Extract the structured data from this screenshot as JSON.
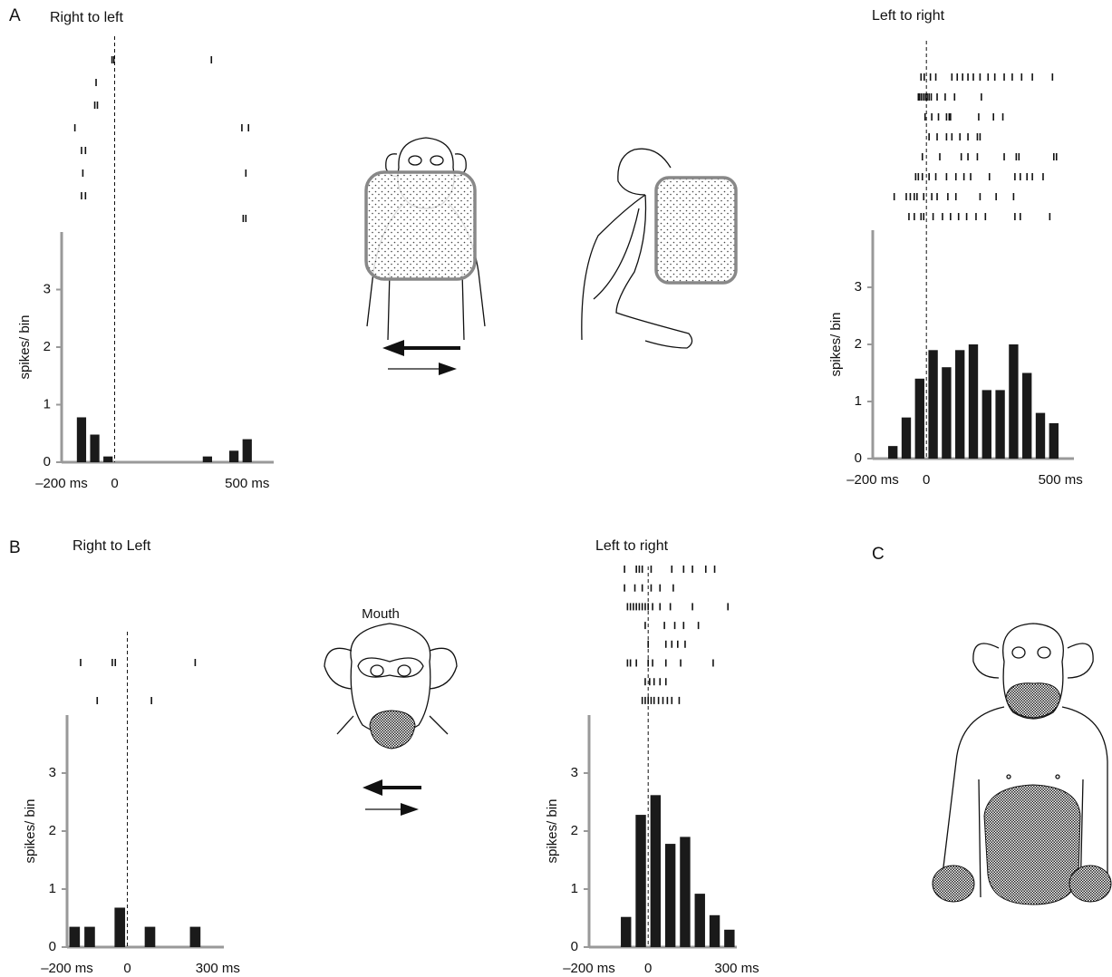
{
  "panel_labels": [
    "A",
    "B",
    "C"
  ],
  "annotation": "Mouth",
  "chart_data": [
    {
      "type": "bar",
      "title": "Right to left",
      "y_label": "spikes/ bin",
      "color": "#1a1a1a",
      "x": [
        -125,
        -75,
        -25,
        350,
        450,
        500
      ],
      "values": [
        0.78,
        0.48,
        0.1,
        0.1,
        0.2,
        0.4
      ],
      "xlim": [
        -200,
        600
      ],
      "xticks": [
        {
          "value": -200,
          "label": "–200 ms"
        },
        0,
        {
          "value": 500,
          "label": "500 ms"
        }
      ],
      "ylim": [
        0,
        4
      ],
      "yticks": [
        0,
        1,
        2,
        3
      ],
      "rasters": [
        [
          -10,
          -3,
          365
        ],
        [
          -70
        ],
        [
          -75,
          -65
        ],
        [
          -150,
          480,
          505
        ],
        [
          -125,
          -110
        ],
        [
          -120,
          495
        ],
        [
          -125,
          -110
        ],
        [
          485,
          495
        ]
      ]
    },
    {
      "type": "bar",
      "title": "Left to right",
      "y_label": "spikes/ bin",
      "color": "#1a1a1a",
      "x": [
        -125,
        -75,
        -25,
        25,
        75,
        125,
        175,
        225,
        275,
        325,
        375,
        425,
        475
      ],
      "values": [
        0.22,
        0.72,
        1.4,
        1.9,
        1.6,
        1.9,
        2.0,
        1.2,
        1.2,
        2.0,
        1.5,
        0.8,
        0.62
      ],
      "xlim": [
        -200,
        550
      ],
      "xticks": [
        {
          "value": -200,
          "label": "–200 ms"
        },
        0,
        {
          "value": 500,
          "label": "500 ms"
        }
      ],
      "ylim": [
        0,
        4
      ],
      "yticks": [
        0,
        1,
        2,
        3
      ],
      "rasters": [
        [
          -20,
          -8,
          15,
          35,
          95,
          115,
          135,
          155,
          175,
          200,
          230,
          255,
          290,
          320,
          355,
          395,
          470
        ],
        [
          -30,
          -25,
          -18,
          -10,
          -3,
          3,
          10,
          18,
          40,
          70,
          105,
          205
        ],
        [
          -5,
          20,
          45,
          75,
          85,
          90,
          195,
          250,
          285
        ],
        [
          10,
          40,
          75,
          95,
          125,
          155,
          190,
          200
        ],
        [
          -15,
          50,
          130,
          155,
          190,
          290,
          335,
          345,
          475,
          485
        ],
        [
          -40,
          -30,
          -15,
          10,
          35,
          75,
          110,
          140,
          165,
          235,
          330,
          350,
          375,
          395,
          435
        ],
        [
          -120,
          -75,
          -60,
          -45,
          -35,
          -10,
          20,
          40,
          80,
          110,
          200,
          260,
          325
        ],
        [
          -65,
          -45,
          -20,
          -10,
          25,
          60,
          90,
          120,
          150,
          185,
          220,
          330,
          350,
          460
        ]
      ]
    },
    {
      "type": "bar",
      "title": "Right to Left",
      "y_label": "spikes/ bin",
      "color": "#1a1a1a",
      "x": [
        -175,
        -125,
        -25,
        75,
        225
      ],
      "values": [
        0.35,
        0.35,
        0.68,
        0.35,
        0.35
      ],
      "xlim": [
        -200,
        320
      ],
      "xticks": [
        {
          "value": -200,
          "label": "–200 ms"
        },
        0,
        {
          "value": 300,
          "label": "300 ms"
        }
      ],
      "ylim": [
        0,
        4
      ],
      "yticks": [
        0,
        1,
        2,
        3
      ],
      "rasters": [
        [
          -155,
          -50,
          -40,
          225
        ],
        [
          -100,
          80
        ]
      ]
    },
    {
      "type": "bar",
      "title": "Left to right",
      "y_label": "spikes/ bin",
      "color": "#1a1a1a",
      "x": [
        -75,
        -25,
        25,
        75,
        125,
        175,
        225,
        275
      ],
      "values": [
        0.52,
        2.28,
        2.62,
        1.78,
        1.9,
        0.92,
        0.55,
        0.3
      ],
      "xlim": [
        -200,
        300
      ],
      "xticks": [
        {
          "value": -200,
          "label": "–200 ms"
        },
        0,
        {
          "value": 300,
          "label": "300 ms"
        }
      ],
      "ylim": [
        0,
        4
      ],
      "yticks": [
        0,
        1,
        2,
        3
      ],
      "rasters": [
        [
          -80,
          -40,
          -30,
          -20,
          10,
          80,
          120,
          150,
          195,
          225
        ],
        [
          -80,
          -45,
          -20,
          10,
          40,
          85
        ],
        [
          -70,
          -60,
          -50,
          -40,
          -30,
          -20,
          -10,
          0,
          15,
          40,
          75,
          150,
          270
        ],
        [
          -10,
          55,
          90,
          120,
          170
        ],
        [
          0,
          60,
          80,
          100,
          125
        ],
        [
          -70,
          -60,
          -40,
          0,
          15,
          60,
          110,
          220
        ],
        [
          -10,
          5,
          20,
          40,
          60
        ],
        [
          -20,
          -10,
          0,
          10,
          20,
          35,
          50,
          65,
          80,
          105
        ]
      ]
    }
  ]
}
